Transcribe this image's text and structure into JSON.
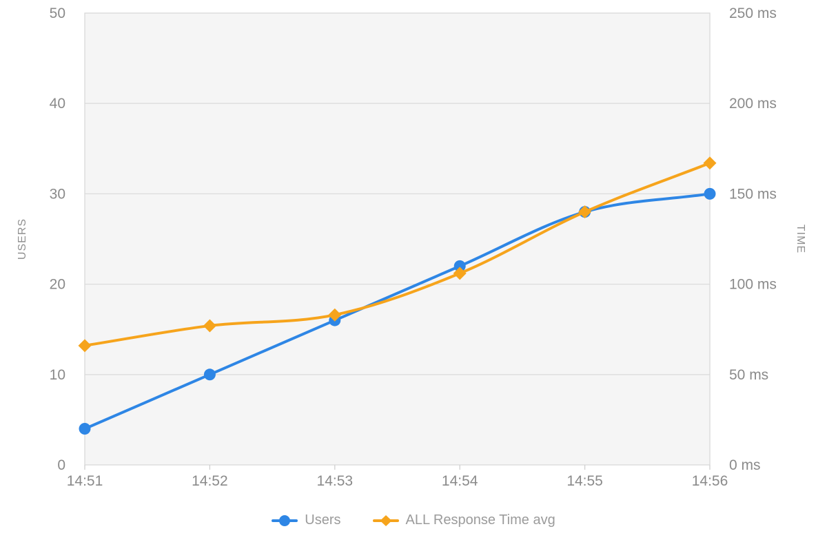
{
  "chart_data": {
    "type": "line",
    "title": "",
    "x": [
      "14:51",
      "14:52",
      "14:53",
      "14:54",
      "14:55",
      "14:56"
    ],
    "series": [
      {
        "name": "Users",
        "yaxis": "left",
        "color": "#2E86E5",
        "marker": "circle",
        "values": [
          4,
          10,
          16,
          22,
          28,
          30
        ]
      },
      {
        "name": "ALL Response Time avg",
        "yaxis": "right",
        "color": "#F6A41C",
        "marker": "diamond",
        "values": [
          66,
          77,
          83,
          106,
          140,
          167
        ]
      }
    ],
    "left_axis": {
      "title": "USERS",
      "min": 0,
      "max": 50,
      "tick_step": 10,
      "tick_labels": [
        "0",
        "10",
        "20",
        "30",
        "40",
        "50"
      ]
    },
    "right_axis": {
      "title": "TIME",
      "min": 0,
      "max": 250,
      "tick_step": 50,
      "tick_labels": [
        "0 ms",
        "50 ms",
        "100 ms",
        "150 ms",
        "200 ms",
        "250 ms"
      ]
    },
    "grid": "horizontal-only",
    "legend_position": "bottom-center",
    "smoothing": "monotone-cubic",
    "colors": {
      "plot_background": "#f5f5f5",
      "grid_line": "#dcdcdc",
      "plot_border": "#d9d9d9",
      "axis_tick_mark": "#cfcfcf",
      "tick_label_text": "#8a8a8a",
      "axis_title_text": "#8f8f8f",
      "legend_text": "#9b9b9b",
      "page_background": "#ffffff"
    }
  }
}
